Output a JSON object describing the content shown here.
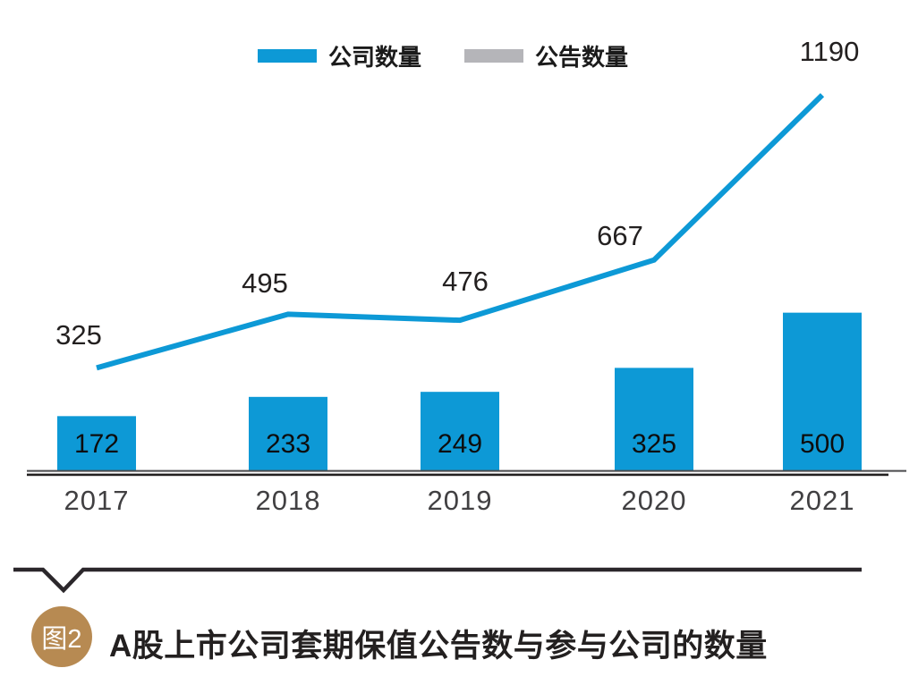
{
  "legend": {
    "items": [
      {
        "label": "公司数量",
        "color": "#0d99d6"
      },
      {
        "label": "公告数量",
        "color": "#b5b5b9"
      }
    ]
  },
  "colors": {
    "series_blue": "#0d99d6",
    "legend_gray": "#b5b5b9",
    "axis_top": "#4a4a4c",
    "axis_bottom": "#232020",
    "divider_dark": "#2b272b",
    "badge_bronze": "#b78a52"
  },
  "chart_data": {
    "type": "combo",
    "categories": [
      "2017",
      "2018",
      "2019",
      "2020",
      "2021"
    ],
    "series": [
      {
        "name": "公司数量",
        "type": "bar",
        "values": [
          172,
          233,
          249,
          325,
          500
        ]
      },
      {
        "name": "公告数量",
        "type": "line",
        "values": [
          325,
          495,
          476,
          667,
          1190
        ]
      }
    ],
    "title": "A股上市公司套期保值公告数与参与公司的数量",
    "xlabel": "",
    "ylabel": "",
    "ylim": [
      0,
      1250
    ],
    "grid": false,
    "legend_position": "top"
  },
  "caption": {
    "badge": "图2",
    "title": "A股上市公司套期保值公告数与参与公司的数量"
  }
}
